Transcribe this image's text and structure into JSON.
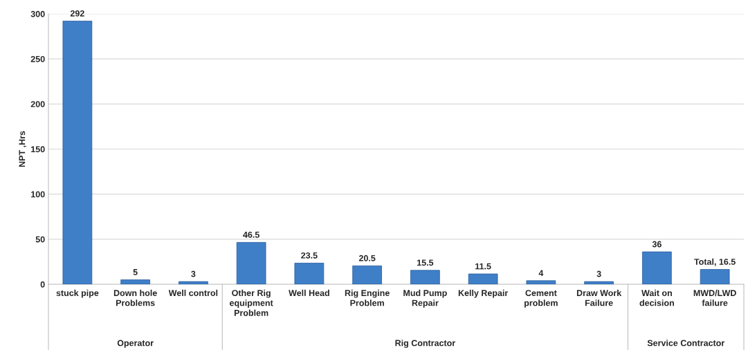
{
  "chart_data": {
    "type": "bar",
    "ylabel": "NPT ,Hrs",
    "categories": [
      "stuck pipe",
      "Down hole Problems",
      "Well control",
      "Other Rig equipment Problem",
      "Well Head",
      "Rig Engine Problem",
      "Mud Pump Repair",
      "Kelly Repair",
      "Cement problem",
      "Draw Work Failure",
      "Wait on decision",
      "MWD/LWD failure"
    ],
    "values": [
      292,
      5,
      3,
      46.5,
      23.5,
      20.5,
      15.5,
      11.5,
      4,
      3,
      36,
      16.5
    ],
    "value_labels": [
      "292",
      "5",
      "3",
      "46.5",
      "23.5",
      "20.5",
      "15.5",
      "11.5",
      "4",
      "3",
      "36",
      "Total, 16.5"
    ],
    "color": "#3f7fc8",
    "ylim": [
      0,
      300
    ],
    "yticks": [
      0,
      50,
      100,
      150,
      200,
      250,
      300
    ],
    "grid": "y",
    "legend": false,
    "annotations": [
      "Operator",
      "Rig Contractor",
      "Service Contractor"
    ]
  }
}
